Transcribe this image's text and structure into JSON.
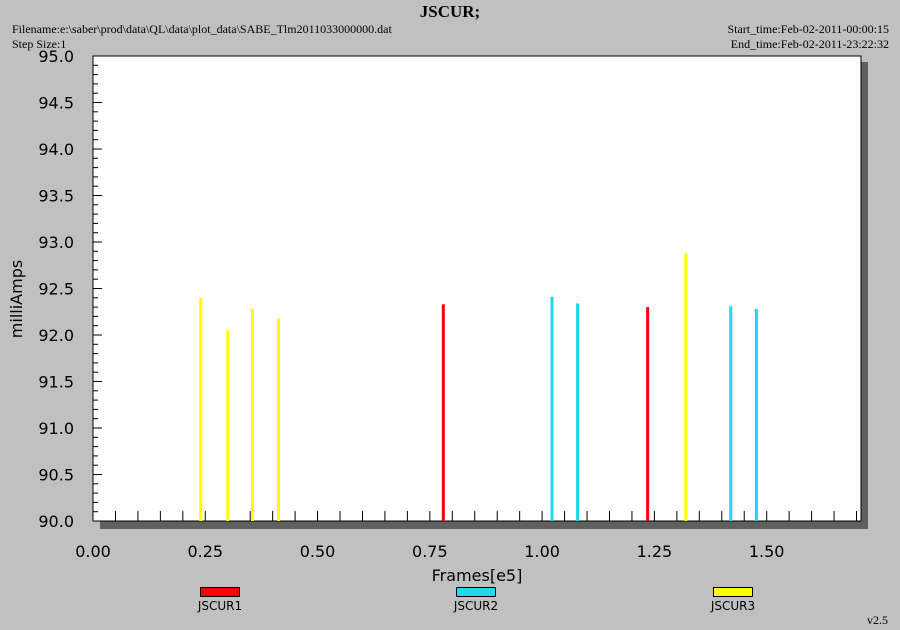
{
  "header": {
    "title": "JSCUR;",
    "filename": "Filename:e:\\saber\\prod\\data\\QL\\data\\plot_data\\SABE_Tlm2011033000000.dat",
    "step_size": "Step Size:1",
    "start_time": "Start_time:Feb-02-2011-00:00:15",
    "end_time": "End_time:Feb-02-2011-23:22:32",
    "version": "v2.5"
  },
  "chart_data": {
    "type": "bar",
    "title": "JSCUR;",
    "xlabel": "Frames[e5]",
    "ylabel": "milliAmps",
    "xlim": [
      0.0,
      1.71
    ],
    "ylim": [
      90.0,
      95.0
    ],
    "x_ticks": [
      "0.00",
      "0.25",
      "0.50",
      "0.75",
      "1.00",
      "1.25",
      "1.50"
    ],
    "y_ticks": [
      "90.0",
      "90.5",
      "91.0",
      "91.5",
      "92.0",
      "92.5",
      "93.0",
      "93.5",
      "94.0",
      "94.5",
      "95.0"
    ],
    "grid": false,
    "legend_position": "bottom",
    "series": [
      {
        "name": "JSCUR1",
        "color": "#ff0000",
        "points": [
          {
            "x": 0.78,
            "y": 92.33
          },
          {
            "x": 1.235,
            "y": 92.3
          }
        ]
      },
      {
        "name": "JSCUR2",
        "color": "#22d4ee",
        "points": [
          {
            "x": 1.022,
            "y": 92.41
          },
          {
            "x": 1.079,
            "y": 92.34
          },
          {
            "x": 1.42,
            "y": 92.31
          },
          {
            "x": 1.477,
            "y": 92.28
          }
        ]
      },
      {
        "name": "JSCUR3",
        "color": "#ffff00",
        "points": [
          {
            "x": 0.24,
            "y": 92.4
          },
          {
            "x": 0.3,
            "y": 92.05
          },
          {
            "x": 0.355,
            "y": 92.28
          },
          {
            "x": 0.413,
            "y": 92.18
          },
          {
            "x": 1.32,
            "y": 92.88
          }
        ]
      }
    ]
  }
}
